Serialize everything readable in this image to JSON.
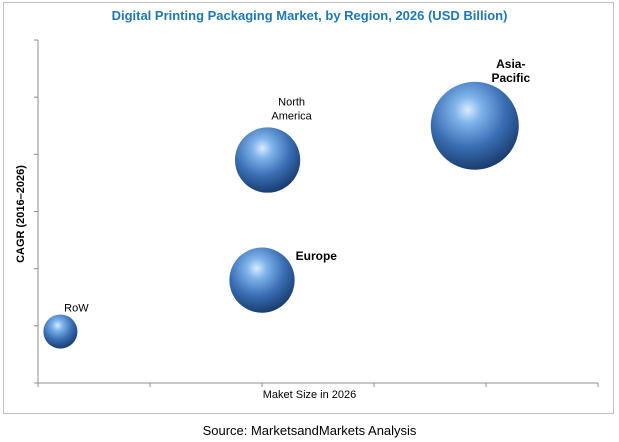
{
  "chart_data": {
    "type": "bubble",
    "title": "Digital Printing Packaging Market, by Region, 2026 (USD Billion)",
    "xlabel": "Maket Size in 2026",
    "ylabel": "CAGR (2016–2026)",
    "source": "Source: MarketsandMarkets Analysis",
    "xlim": [
      0,
      10
    ],
    "ylim": [
      0,
      10
    ],
    "grid": false,
    "legend": "none",
    "bubble_color": "#3a6fb5",
    "series": [
      {
        "label_lines": [
          "Asia-",
          "Pacific"
        ],
        "x": 7.8,
        "y": 7.5,
        "size": 1.0
      },
      {
        "label_lines": [
          "North",
          "America"
        ],
        "x": 4.1,
        "y": 6.5,
        "size": 0.55
      },
      {
        "label_lines": [
          "Europe"
        ],
        "x": 4.0,
        "y": 3.0,
        "size": 0.55
      },
      {
        "label_lines": [
          "RoW"
        ],
        "x": 0.4,
        "y": 1.5,
        "size": 0.15
      }
    ]
  }
}
